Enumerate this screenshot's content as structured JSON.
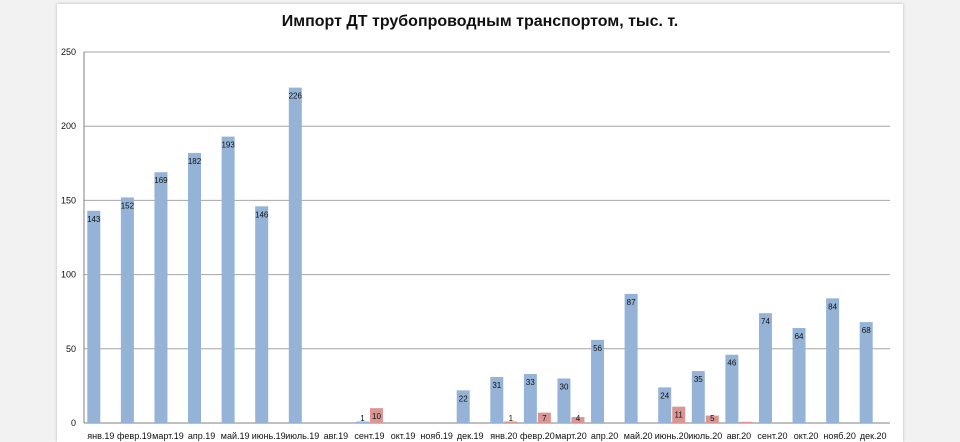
{
  "chart_data": {
    "type": "bar",
    "title": "Импорт ДТ трубопроводным транспортом, тыс. т.",
    "xlabel": "",
    "ylabel": "",
    "ylim": [
      0,
      250
    ],
    "yticks": [
      0,
      50,
      100,
      150,
      200,
      250
    ],
    "grid": true,
    "categories": [
      "янв.19",
      "февр.19",
      "март.19",
      "апр.19",
      "май.19",
      "июнь.19",
      "июль.19",
      "авг.19",
      "сент.19",
      "окт.19",
      "нояб.19",
      "дек.19",
      "янв.20",
      "февр.20",
      "март.20",
      "апр.20",
      "май.20",
      "июнь.20",
      "июль.20",
      "авг.20",
      "сент.20",
      "окт.20",
      "нояб.20",
      "дек.20"
    ],
    "series": [
      {
        "color": "#95b3d7",
        "values": [
          143,
          152,
          169,
          182,
          193,
          146,
          226,
          0,
          1,
          0,
          0,
          22,
          31,
          33,
          30,
          56,
          87,
          24,
          35,
          46,
          74,
          64,
          84,
          68
        ],
        "labels": [
          "143",
          "152",
          "169",
          "182",
          "193",
          "146",
          "226",
          "",
          "1",
          "",
          "",
          "22",
          "31",
          "33",
          "30",
          "56",
          "87",
          "24",
          "35",
          "46",
          "74",
          "64",
          "84",
          "68"
        ]
      },
      {
        "color": "#d99694",
        "values": [
          0,
          0,
          0,
          0,
          0,
          0,
          0,
          0,
          10,
          0,
          0,
          0,
          1,
          7,
          4,
          0,
          0,
          11,
          5,
          0.8,
          0,
          0,
          0,
          0
        ],
        "labels": [
          "",
          "",
          "",
          "",
          "",
          "",
          "",
          "",
          "10",
          "",
          "",
          "",
          "1",
          "7",
          "4",
          "",
          "",
          "11",
          "5",
          "",
          "",
          "",
          "",
          ""
        ]
      }
    ]
  }
}
